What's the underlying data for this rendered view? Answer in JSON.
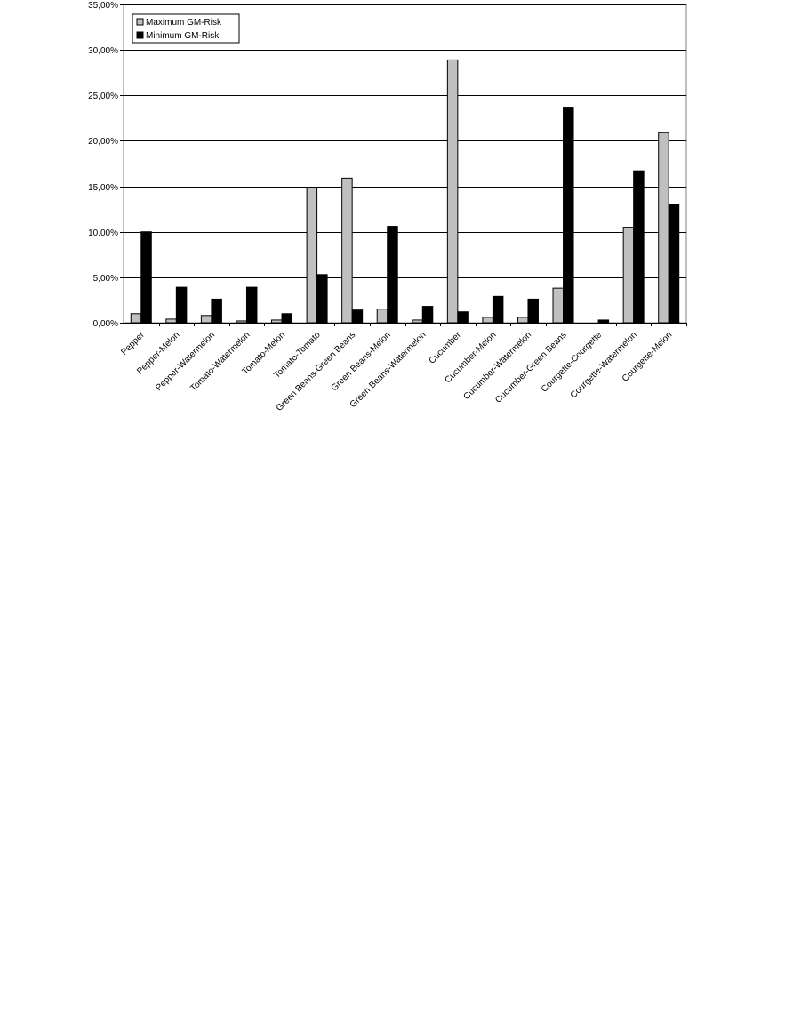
{
  "chart_data": {
    "type": "bar",
    "title": "",
    "xlabel": "",
    "ylabel": "",
    "ylim": [
      0,
      35
    ],
    "yticks": [
      "0,00%",
      "5,00%",
      "10,00%",
      "15,00%",
      "20,00%",
      "25,00%",
      "30,00%",
      "35,00%"
    ],
    "grid": true,
    "legend_position": "top-left",
    "categories": [
      "Pepper",
      "Pepper-Melon",
      "Pepper-Watermelon",
      "Tomato-Watermelon",
      "Tomato-Melon",
      "Tomato-Tomato",
      "Green Beans-Green Beans",
      "Green Beans-Melon",
      "Green Beans-Watermelon",
      "Cucumber",
      "Cucumber-Melon",
      "Cucumber-Watermelon",
      "Cucumber-Green Beans",
      "Courgette-Courgette",
      "Courgette-Watermelon",
      "Courgette-Melon"
    ],
    "series": [
      {
        "name": "Maximum GM-Risk",
        "color": "#c0c0c0",
        "values": [
          1.0,
          0.4,
          0.8,
          0.2,
          0.3,
          14.9,
          15.9,
          1.5,
          0.3,
          28.9,
          0.6,
          0.6,
          3.8,
          0.0,
          10.5,
          20.9
        ]
      },
      {
        "name": "Minimum GM-Risk",
        "color": "#000000",
        "values": [
          10.0,
          3.9,
          2.6,
          3.9,
          1.0,
          5.3,
          1.4,
          10.6,
          1.8,
          1.2,
          2.9,
          2.6,
          23.7,
          0.3,
          16.7,
          13.0
        ]
      }
    ]
  }
}
